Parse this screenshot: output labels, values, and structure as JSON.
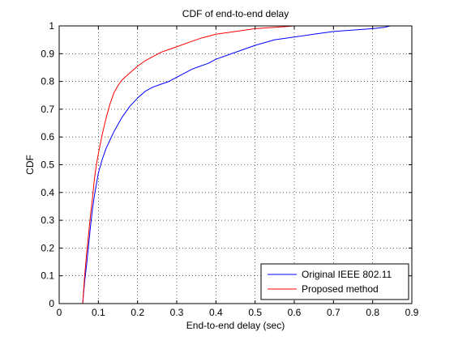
{
  "chart_data": {
    "type": "line",
    "title": "CDF of end-to-end delay",
    "xlabel": "End-to-end delay (sec)",
    "ylabel": "CDF",
    "xlim": [
      0,
      0.9
    ],
    "ylim": [
      0,
      1
    ],
    "xticks": [
      0,
      0.1,
      0.2,
      0.3,
      0.4,
      0.5,
      0.6,
      0.7,
      0.8,
      0.9
    ],
    "xtick_labels": [
      "0",
      "0.1",
      "0.2",
      "0.3",
      "0.4",
      "0.5",
      "0.6",
      "0.7",
      "0.8",
      "0.9"
    ],
    "yticks": [
      0,
      0.1,
      0.2,
      0.3,
      0.4,
      0.5,
      0.6,
      0.7,
      0.8,
      0.9,
      1
    ],
    "ytick_labels": [
      "0",
      "0.1",
      "0.2",
      "0.3",
      "0.4",
      "0.5",
      "0.6",
      "0.7",
      "0.8",
      "0.9",
      "1"
    ],
    "grid": true,
    "legend_position": "bottom-right",
    "series": [
      {
        "name": "Original IEEE 802.11",
        "color": "#0000ff",
        "x": [
          0.06,
          0.065,
          0.07,
          0.075,
          0.08,
          0.085,
          0.09,
          0.095,
          0.1,
          0.11,
          0.12,
          0.13,
          0.14,
          0.15,
          0.16,
          0.18,
          0.2,
          0.22,
          0.24,
          0.26,
          0.28,
          0.3,
          0.32,
          0.34,
          0.36,
          0.38,
          0.4,
          0.43,
          0.46,
          0.5,
          0.55,
          0.6,
          0.65,
          0.7,
          0.75,
          0.8,
          0.83,
          0.845
        ],
        "y": [
          0.0,
          0.08,
          0.14,
          0.21,
          0.28,
          0.34,
          0.39,
          0.43,
          0.47,
          0.52,
          0.56,
          0.59,
          0.62,
          0.645,
          0.67,
          0.71,
          0.74,
          0.765,
          0.78,
          0.79,
          0.8,
          0.815,
          0.83,
          0.845,
          0.855,
          0.865,
          0.88,
          0.895,
          0.91,
          0.93,
          0.95,
          0.96,
          0.97,
          0.98,
          0.985,
          0.99,
          0.995,
          1.0
        ]
      },
      {
        "name": "Proposed method",
        "color": "#ff0000",
        "x": [
          0.06,
          0.065,
          0.07,
          0.075,
          0.08,
          0.085,
          0.09,
          0.095,
          0.1,
          0.11,
          0.12,
          0.13,
          0.14,
          0.15,
          0.16,
          0.18,
          0.2,
          0.22,
          0.24,
          0.26,
          0.28,
          0.3,
          0.33,
          0.36,
          0.4,
          0.45,
          0.5,
          0.55,
          0.58,
          0.6
        ],
        "y": [
          0.0,
          0.1,
          0.18,
          0.25,
          0.32,
          0.38,
          0.45,
          0.5,
          0.54,
          0.61,
          0.67,
          0.72,
          0.76,
          0.785,
          0.805,
          0.83,
          0.855,
          0.875,
          0.89,
          0.905,
          0.915,
          0.925,
          0.94,
          0.955,
          0.97,
          0.98,
          0.99,
          0.995,
          0.998,
          1.0
        ]
      }
    ]
  }
}
